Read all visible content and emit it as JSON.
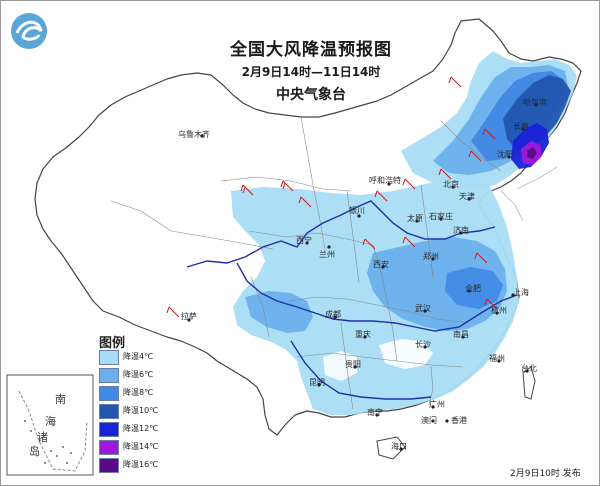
{
  "header": {
    "title": "全国大风降温预报图",
    "period": "2月9日14时—11日14时",
    "issuer": "中央气象台"
  },
  "legend": {
    "title": "图例",
    "items": [
      {
        "label": "降温4℃",
        "color": "#a8dcf4"
      },
      {
        "label": "降温6℃",
        "color": "#6ab0ec"
      },
      {
        "label": "降温8℃",
        "color": "#3f88e4"
      },
      {
        "label": "降温10℃",
        "color": "#2255b0"
      },
      {
        "label": "降温12℃",
        "color": "#1a22d8"
      },
      {
        "label": "降温14℃",
        "color": "#a018d8"
      },
      {
        "label": "降温16℃",
        "color": "#5a0a86"
      }
    ]
  },
  "cities": [
    {
      "id": "urumqi",
      "name": "乌鲁木齐"
    },
    {
      "id": "lhasa",
      "name": "拉萨"
    },
    {
      "id": "xining",
      "name": "西宁"
    },
    {
      "id": "lanzhou",
      "name": "兰州"
    },
    {
      "id": "yinchuan",
      "name": "银川"
    },
    {
      "id": "hohhot",
      "name": "呼和浩特"
    },
    {
      "id": "beijing",
      "name": "北京"
    },
    {
      "id": "tianjin",
      "name": "天津"
    },
    {
      "id": "shijiazhuang",
      "name": "石家庄"
    },
    {
      "id": "taiyuan",
      "name": "太原"
    },
    {
      "id": "jinan",
      "name": "济南"
    },
    {
      "id": "zhengzhou",
      "name": "郑州"
    },
    {
      "id": "xian",
      "name": "西安"
    },
    {
      "id": "chengdu",
      "name": "成都"
    },
    {
      "id": "chongqing",
      "name": "重庆"
    },
    {
      "id": "guiyang",
      "name": "贵阳"
    },
    {
      "id": "kunming",
      "name": "昆明"
    },
    {
      "id": "nanning",
      "name": "南宁"
    },
    {
      "id": "guangzhou",
      "name": "广州"
    },
    {
      "id": "haikou",
      "name": "海口"
    },
    {
      "id": "changsha",
      "name": "长沙"
    },
    {
      "id": "wuhan",
      "name": "武汉"
    },
    {
      "id": "nanchang",
      "name": "南昌"
    },
    {
      "id": "fuzhou",
      "name": "福州"
    },
    {
      "id": "hangzhou",
      "name": "杭州"
    },
    {
      "id": "shanghai",
      "name": "上海"
    },
    {
      "id": "hefei",
      "name": "合肥"
    },
    {
      "id": "taibei",
      "name": "台北"
    },
    {
      "id": "hongkong",
      "name": "香港"
    },
    {
      "id": "macau",
      "name": "澳门"
    },
    {
      "id": "harbin",
      "name": "哈尔滨"
    },
    {
      "id": "changchun",
      "name": "长春"
    },
    {
      "id": "shenyang",
      "name": "沈阳"
    }
  ],
  "inset": {
    "south_sea_line1": "南",
    "south_sea_line2": "海",
    "islands_line1": "诸",
    "islands_line2": "岛"
  },
  "release": "2月9日10时 发布"
}
